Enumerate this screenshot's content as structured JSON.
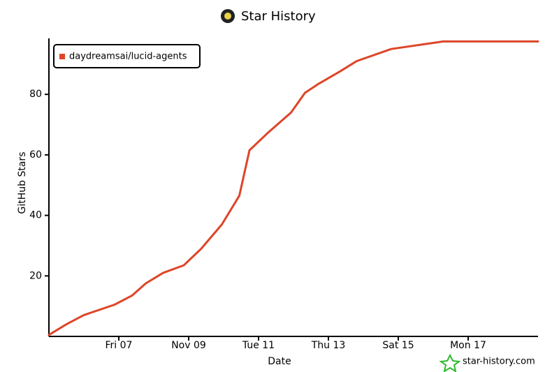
{
  "chart_data": {
    "type": "line",
    "title": "Star History",
    "xlabel": "Date",
    "ylabel": "GitHub Stars",
    "watermark": "star-history.com",
    "x": [
      5.0,
      5.5,
      5.99,
      6.88,
      7.38,
      7.77,
      8.27,
      8.86,
      9.36,
      9.95,
      10.45,
      10.74,
      11.24,
      11.93,
      12.33,
      12.72,
      13.32,
      13.81,
      14.8,
      16.29,
      17.08,
      17.87,
      19.0
    ],
    "series": [
      {
        "name": "daydreamsai/lucid-agents",
        "color": "#dd4528",
        "values": [
          0.5,
          4,
          7,
          10.5,
          13.5,
          17.5,
          21,
          23.5,
          29,
          37,
          46.5,
          61.5,
          67,
          74,
          80.5,
          83.5,
          87.5,
          91,
          95,
          97.5,
          97.5,
          97.5,
          97.5
        ]
      }
    ],
    "xlim": [
      5,
      19
    ],
    "xticks": [
      {
        "value": 7,
        "label": "Fri 07"
      },
      {
        "value": 9,
        "label": "Nov 09"
      },
      {
        "value": 11,
        "label": "Tue 11"
      },
      {
        "value": 13,
        "label": "Thu 13"
      },
      {
        "value": 15,
        "label": "Sat 15"
      },
      {
        "value": 17,
        "label": "Mon 17"
      }
    ],
    "ylim": [
      0,
      98.5
    ],
    "yticks": [
      20,
      40,
      60,
      80
    ],
    "legend": "top-left"
  }
}
